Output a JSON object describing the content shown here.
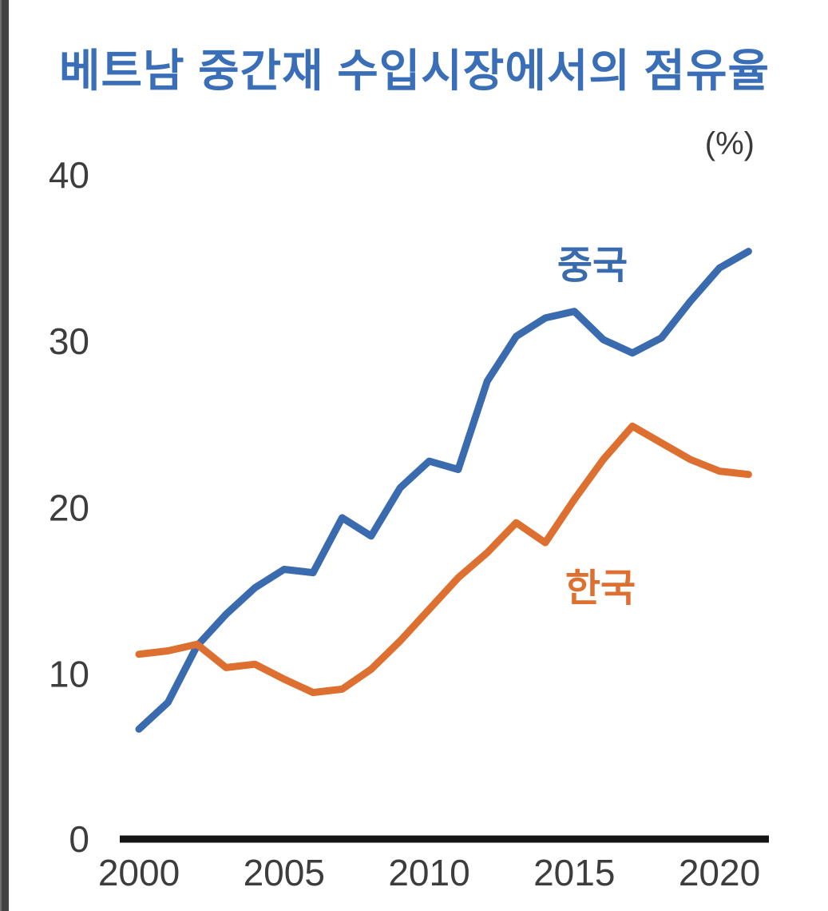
{
  "chart": {
    "title": "베트남 중간재 수입시장에서의 점유율",
    "unit_label": "(%)",
    "colors": {
      "title": "#3a6fb8",
      "axis_line": "#141414",
      "tick_text": "#3d3d3d",
      "page_edge_bar": "#434343",
      "background": "#ffffff"
    }
  },
  "chart_data": {
    "type": "line",
    "title": "베트남 중간재 수입시장에서의 점유율",
    "unit": "(%)",
    "x": [
      2000,
      2001,
      2002,
      2003,
      2004,
      2005,
      2006,
      2007,
      2008,
      2009,
      2010,
      2011,
      2012,
      2013,
      2014,
      2015,
      2016,
      2017,
      2018,
      2019,
      2020,
      2021
    ],
    "series": [
      {
        "name": "China",
        "label": "중국",
        "color": "#3a6bae",
        "values": [
          6.7,
          8.3,
          11.7,
          13.6,
          15.2,
          16.3,
          16.1,
          19.4,
          18.3,
          21.2,
          22.8,
          22.3,
          27.6,
          30.3,
          31.4,
          31.8,
          30.1,
          29.3,
          30.2,
          32.4,
          34.4,
          35.4
        ]
      },
      {
        "name": "Korea",
        "label": "한국",
        "color": "#dd7030",
        "values": [
          11.2,
          11.4,
          11.8,
          10.4,
          10.6,
          9.7,
          8.9,
          9.1,
          10.3,
          12.0,
          13.9,
          15.8,
          17.3,
          19.1,
          17.9,
          20.5,
          22.9,
          24.9,
          23.9,
          22.9,
          22.2,
          22.0
        ]
      }
    ],
    "x_ticks": [
      2000,
      2005,
      2010,
      2015,
      2020
    ],
    "y_ticks": [
      0,
      10,
      20,
      30,
      40
    ],
    "xlim": [
      2000,
      2021
    ],
    "ylim": [
      0,
      40
    ],
    "grid": false,
    "legend_position": "labels-near-lines"
  }
}
